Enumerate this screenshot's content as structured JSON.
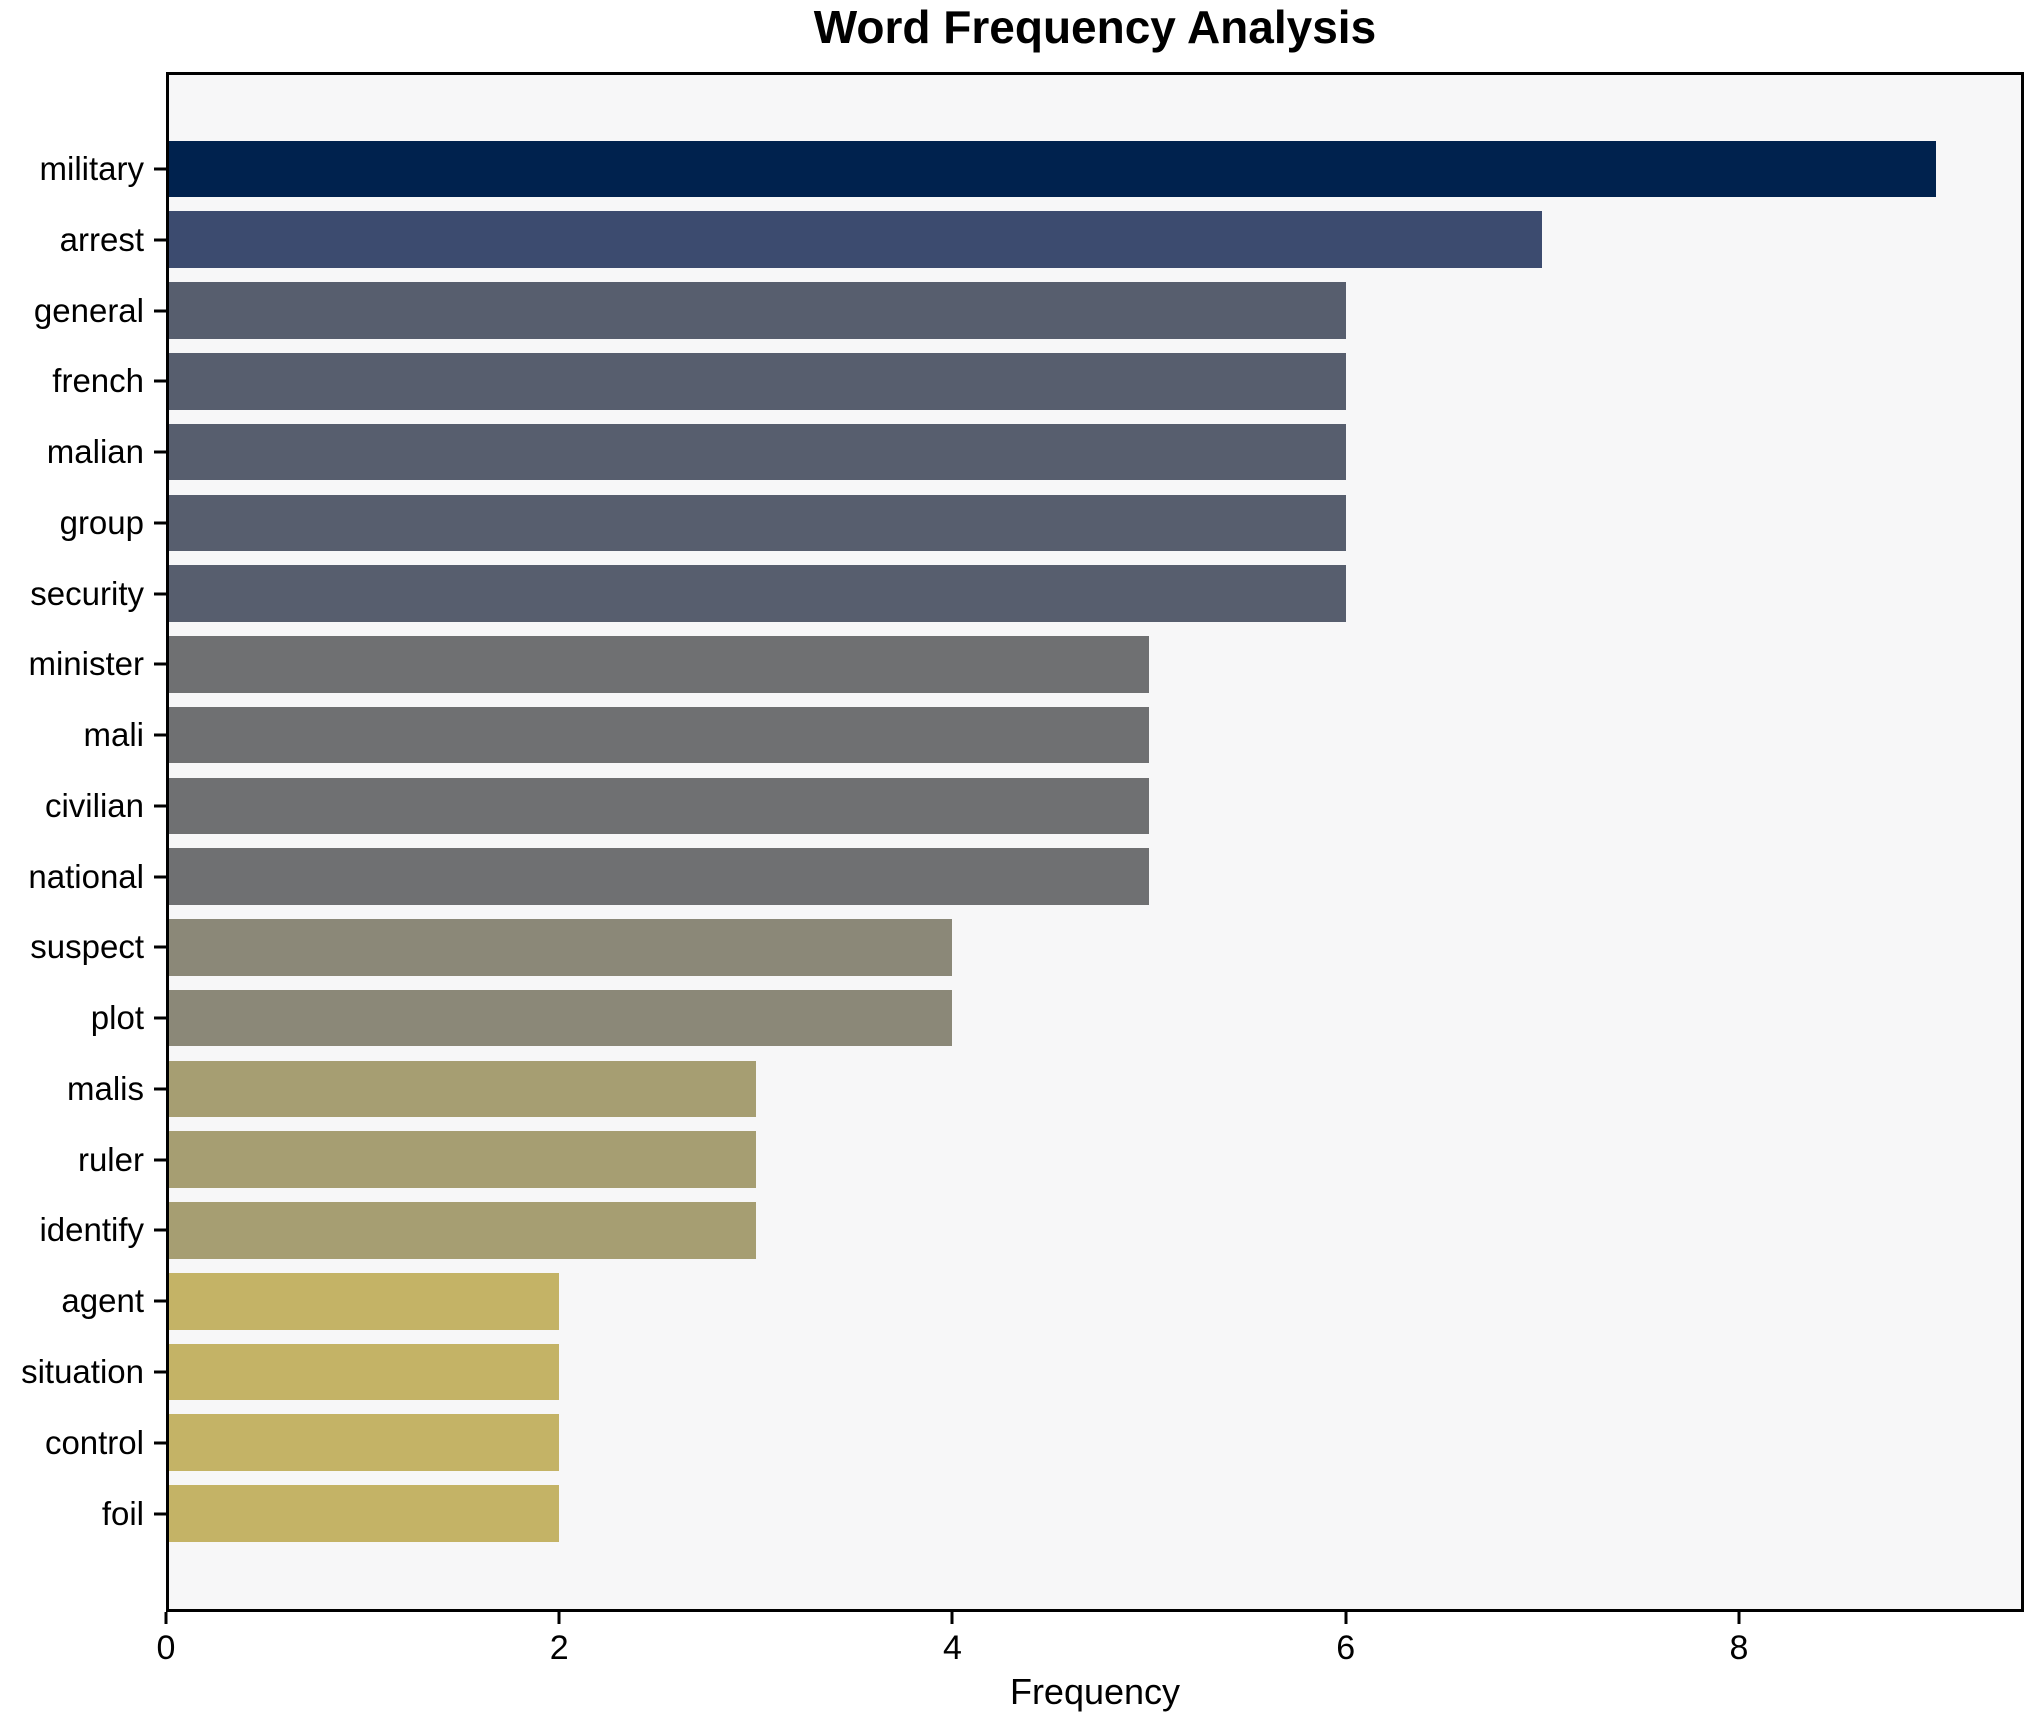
{
  "chart_data": {
    "type": "bar",
    "orientation": "horizontal",
    "title": "Word Frequency Analysis",
    "xlabel": "Frequency",
    "ylabel": "",
    "categories": [
      "military",
      "arrest",
      "general",
      "french",
      "malian",
      "group",
      "security",
      "minister",
      "mali",
      "civilian",
      "national",
      "suspect",
      "plot",
      "malis",
      "ruler",
      "identify",
      "agent",
      "situation",
      "control",
      "foil"
    ],
    "values": [
      9,
      7,
      6,
      6,
      6,
      6,
      6,
      5,
      5,
      5,
      5,
      4,
      4,
      3,
      3,
      3,
      2,
      2,
      2,
      2
    ],
    "bar_colors": [
      "#00224e",
      "#3c4b6f",
      "#575e6e",
      "#575e6e",
      "#575e6e",
      "#575e6e",
      "#575e6e",
      "#6f7072",
      "#6f7072",
      "#6f7072",
      "#6f7072",
      "#8b8878",
      "#8b8878",
      "#a69e72",
      "#a69e72",
      "#a69e72",
      "#c4b366",
      "#c4b366",
      "#c4b366",
      "#c4b366"
    ],
    "xlim": [
      0,
      9.45
    ],
    "xticks": [
      0,
      2,
      4,
      6,
      8
    ],
    "grid": false,
    "legend_position": "none",
    "plot_background": "#f7f7f8",
    "figure_background": "#ffffff",
    "spine_color": "#000000",
    "text_color": "#000000"
  }
}
